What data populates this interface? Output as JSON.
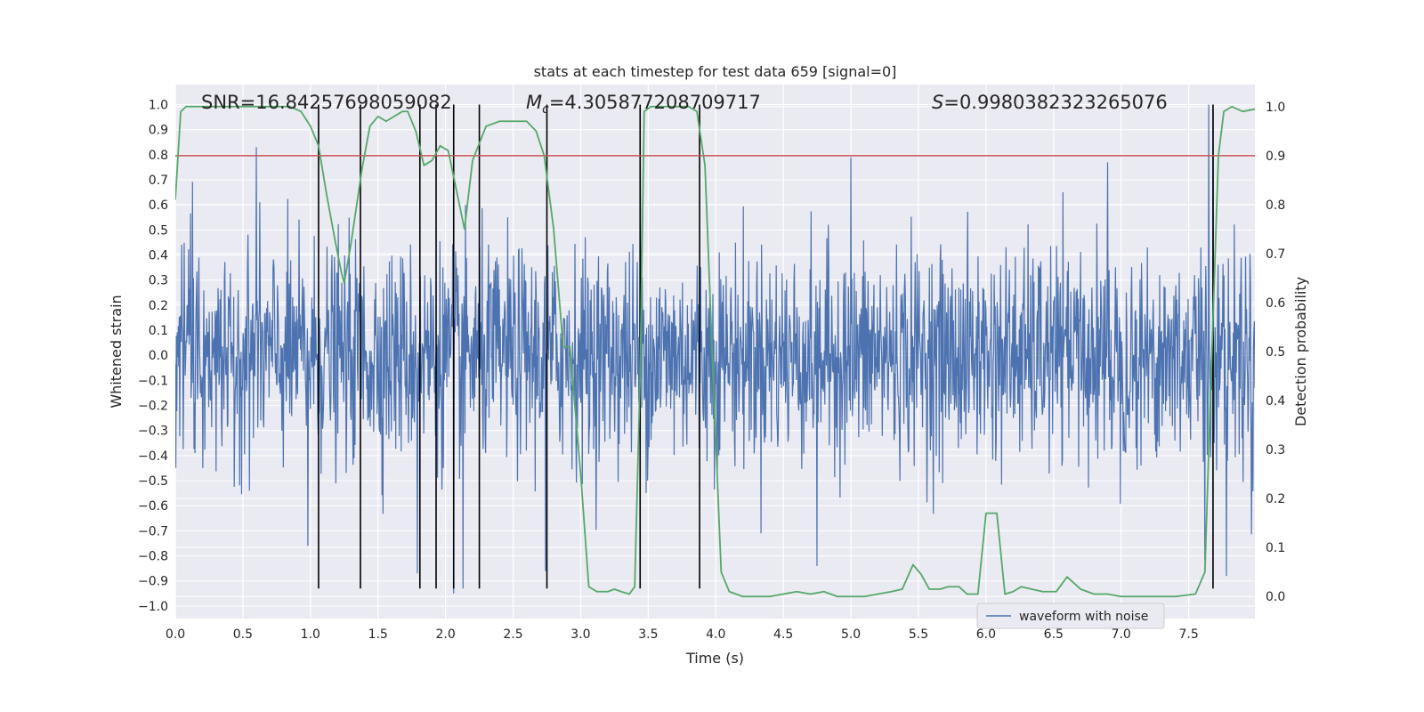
{
  "chart_data": {
    "type": "line",
    "title": "stats at each timestep for test data 659 [signal=0]",
    "xlabel": "Time (s)",
    "ylabel": "Whitened strain",
    "y2label": "Detection probability",
    "xlim": [
      0.0,
      7.99
    ],
    "ylim": [
      -1.05,
      1.08
    ],
    "y2lim": [
      -0.045,
      1.045
    ],
    "x_ticks": [
      0.0,
      0.5,
      1.0,
      1.5,
      2.0,
      2.5,
      3.0,
      3.5,
      4.0,
      4.5,
      5.0,
      5.5,
      6.0,
      6.5,
      7.0,
      7.5
    ],
    "x_tick_labels": [
      "0.0",
      "0.5",
      "1.0",
      "1.5",
      "2.0",
      "2.5",
      "3.0",
      "3.5",
      "4.0",
      "4.5",
      "5.0",
      "5.5",
      "6.0",
      "6.5",
      "7.0",
      "7.5"
    ],
    "y_ticks": [
      1.0,
      0.9,
      0.8,
      0.7,
      0.6,
      0.5,
      0.4,
      0.3,
      0.2,
      0.1,
      0.0,
      -0.1,
      -0.2,
      -0.3,
      -0.4,
      -0.5,
      -0.6,
      -0.7,
      -0.8,
      -0.9,
      -1.0
    ],
    "y_tick_labels": [
      "1.0",
      "0.9",
      "0.8",
      "0.7",
      "0.6",
      "0.5",
      "0.4",
      "0.3",
      "0.2",
      "0.1",
      "0.0",
      "−0.1",
      "−0.2",
      "−0.3",
      "−0.4",
      "−0.5",
      "−0.6",
      "−0.7",
      "−0.8",
      "−0.9",
      "−1.0"
    ],
    "y2_ticks": [
      1.0,
      0.9,
      0.8,
      0.7,
      0.6,
      0.5,
      0.4,
      0.3,
      0.2,
      0.1,
      0.0
    ],
    "y2_tick_labels": [
      "1.0",
      "0.9",
      "0.8",
      "0.7",
      "0.6",
      "0.5",
      "0.4",
      "0.3",
      "0.2",
      "0.1",
      "0.0"
    ],
    "annotations": {
      "snr": "SNR=16.84257698059082",
      "mc_symbol": "M",
      "mc_sub": "c",
      "mc_value": "=4.305877208709717",
      "s_symbol": "S",
      "s_value": "=0.9980382323265076"
    },
    "threshold": {
      "y2": 0.9,
      "color": "#c44e52"
    },
    "vlines": {
      "x": [
        1.06,
        1.37,
        1.81,
        1.93,
        2.06,
        2.25,
        2.75,
        3.44,
        3.88,
        7.68
      ],
      "ymin": -0.93,
      "ymax": 1.0,
      "color": "#000000"
    },
    "series": [
      {
        "name": "waveform with noise",
        "axis": "left",
        "kind": "noise",
        "color": "#4c72b0",
        "typical_amplitude": 0.42,
        "max_amplitude": 1.0,
        "seed": 659,
        "peaks": [
          {
            "t": 0.6,
            "v": 0.83
          },
          {
            "t": 0.98,
            "v": -0.76
          },
          {
            "t": 1.79,
            "v": -0.87
          },
          {
            "t": 2.06,
            "v": -0.95
          },
          {
            "t": 2.13,
            "v": -0.93
          },
          {
            "t": 2.74,
            "v": -0.86
          },
          {
            "t": 3.44,
            "v": 0.86
          },
          {
            "t": 4.75,
            "v": -0.84
          },
          {
            "t": 7.65,
            "v": 1.0
          },
          {
            "t": 7.68,
            "v": 0.98
          },
          {
            "t": 7.62,
            "v": -0.82
          },
          {
            "t": 7.78,
            "v": -0.88
          },
          {
            "t": 6.9,
            "v": 0.77
          },
          {
            "t": 5.0,
            "v": 0.79
          }
        ]
      },
      {
        "name": "detection probability",
        "axis": "right",
        "kind": "line",
        "color": "#55a868",
        "x": [
          0.0,
          0.04,
          0.08,
          0.13,
          0.2,
          0.3,
          0.5,
          0.7,
          0.85,
          0.93,
          1.0,
          1.06,
          1.12,
          1.18,
          1.23,
          1.25,
          1.3,
          1.38,
          1.44,
          1.5,
          1.56,
          1.62,
          1.68,
          1.72,
          1.78,
          1.84,
          1.9,
          1.96,
          2.02,
          2.08,
          2.14,
          2.2,
          2.3,
          2.4,
          2.5,
          2.6,
          2.67,
          2.73,
          2.8,
          2.87,
          2.92,
          3.0,
          3.06,
          3.12,
          3.2,
          3.25,
          3.3,
          3.36,
          3.4,
          3.44,
          3.47,
          3.52,
          3.58,
          3.7,
          3.8,
          3.86,
          3.92,
          3.98,
          4.04,
          4.1,
          4.2,
          4.3,
          4.4,
          4.5,
          4.6,
          4.7,
          4.8,
          4.9,
          5.0,
          5.1,
          5.2,
          5.3,
          5.38,
          5.46,
          5.52,
          5.58,
          5.66,
          5.72,
          5.8,
          5.86,
          5.94,
          6.0,
          6.08,
          6.14,
          6.2,
          6.26,
          6.34,
          6.42,
          6.52,
          6.6,
          6.7,
          6.8,
          6.9,
          7.0,
          7.2,
          7.4,
          7.55,
          7.62,
          7.66,
          7.72,
          7.76,
          7.82,
          7.9,
          7.99
        ],
        "y": [
          0.81,
          0.99,
          1.0,
          1.0,
          1.0,
          1.0,
          1.0,
          1.0,
          1.0,
          0.99,
          0.96,
          0.92,
          0.82,
          0.73,
          0.66,
          0.64,
          0.72,
          0.87,
          0.96,
          0.98,
          0.97,
          0.98,
          0.99,
          0.99,
          0.95,
          0.88,
          0.89,
          0.92,
          0.91,
          0.83,
          0.75,
          0.89,
          0.96,
          0.97,
          0.97,
          0.97,
          0.95,
          0.9,
          0.75,
          0.51,
          0.51,
          0.25,
          0.02,
          0.01,
          0.01,
          0.015,
          0.01,
          0.005,
          0.02,
          0.45,
          0.99,
          1.0,
          1.0,
          1.0,
          1.0,
          0.99,
          0.88,
          0.45,
          0.05,
          0.01,
          0.0,
          0.0,
          0.0,
          0.005,
          0.01,
          0.005,
          0.01,
          0.0,
          0.0,
          0.0,
          0.005,
          0.01,
          0.015,
          0.065,
          0.045,
          0.015,
          0.015,
          0.02,
          0.02,
          0.005,
          0.005,
          0.17,
          0.17,
          0.005,
          0.01,
          0.02,
          0.015,
          0.01,
          0.01,
          0.04,
          0.015,
          0.005,
          0.005,
          0.0,
          0.0,
          0.0,
          0.005,
          0.05,
          0.4,
          0.9,
          0.99,
          1.0,
          0.99,
          0.995
        ]
      }
    ],
    "legend": {
      "placement": "lower-center-right",
      "entries": [
        "waveform with noise"
      ]
    }
  }
}
